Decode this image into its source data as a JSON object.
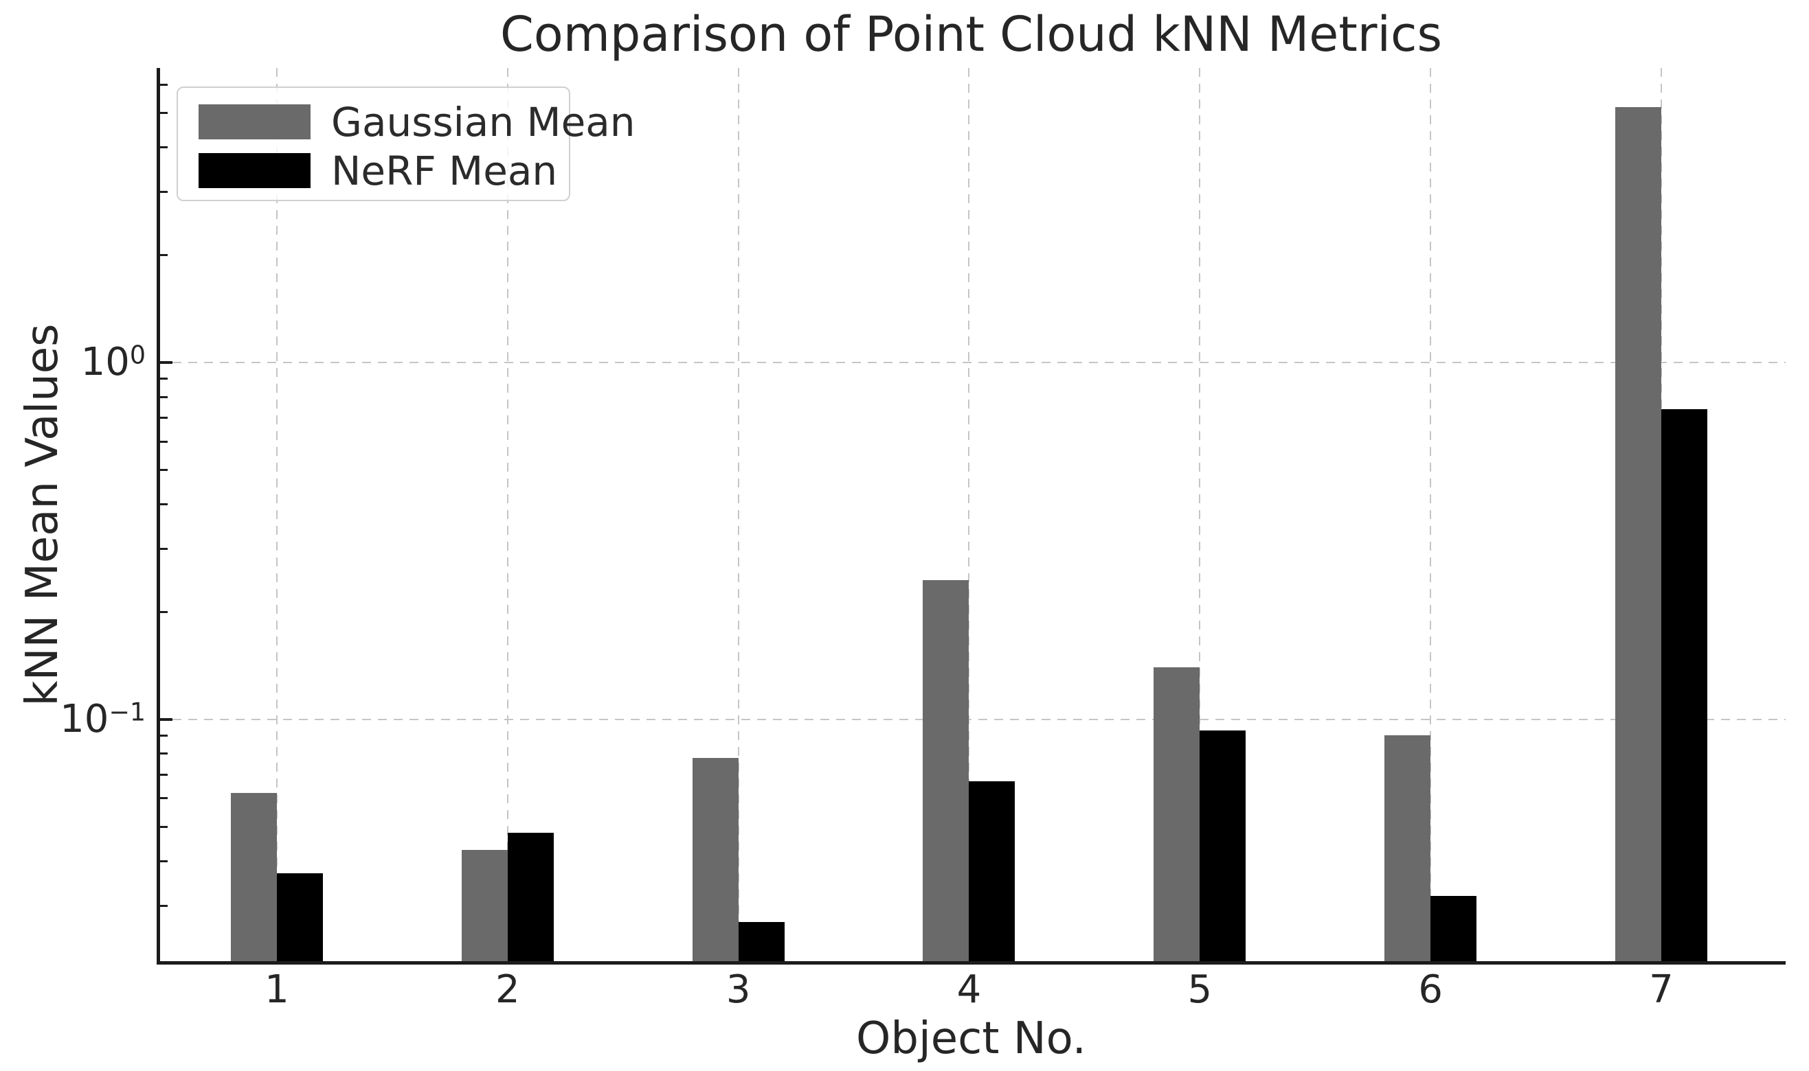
{
  "chart_data": {
    "type": "bar",
    "title": "Comparison of Point Cloud kNN Metrics",
    "xlabel": "Object No.",
    "ylabel": "kNN Mean Values",
    "categories": [
      "1",
      "2",
      "3",
      "4",
      "5",
      "6",
      "7"
    ],
    "series": [
      {
        "name": "Gaussian Mean",
        "color": "#6a6a6a",
        "values": [
          0.062,
          0.043,
          0.078,
          0.245,
          0.14,
          0.09,
          5.2
        ]
      },
      {
        "name": "NeRF Mean",
        "color": "#000000",
        "values": [
          0.037,
          0.048,
          0.027,
          0.067,
          0.093,
          0.032,
          0.74
        ]
      }
    ],
    "yscale": "log",
    "ylim": [
      0.0208,
      6.68
    ],
    "y_major_ticks": [
      {
        "label_base": "10",
        "label_exp": "0",
        "value": 1
      },
      {
        "label_base": "10",
        "label_exp": "−1",
        "value": 0.1
      }
    ],
    "grid": {
      "horizontal": "major-only",
      "vertical": "per-category",
      "style": "dashed"
    },
    "legend_position": "upper-left"
  },
  "style": {
    "bar_gray": "#6a6a6a",
    "bar_black": "#000000",
    "grid_color": "#c5c5c5",
    "spine_color": "#1c1c1c",
    "text_color": "#262626",
    "background": "#ffffff"
  }
}
